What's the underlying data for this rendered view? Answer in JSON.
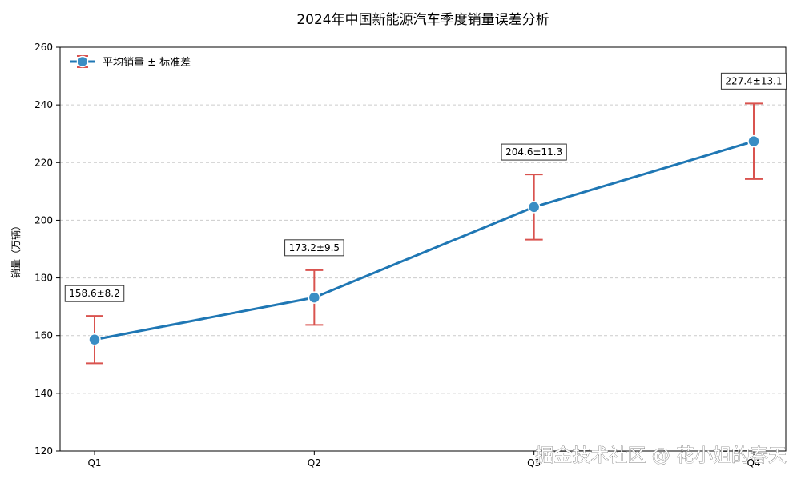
{
  "chart_data": {
    "type": "line",
    "title": "2024年中国新能源汽车季度销量误差分析",
    "xlabel": "",
    "ylabel": "销量（万辆）",
    "categories": [
      "Q1",
      "Q2",
      "Q3",
      "Q4"
    ],
    "series": [
      {
        "name": "平均销量 ± 标准差",
        "values": [
          158.6,
          173.2,
          204.6,
          227.4
        ],
        "errors": [
          8.2,
          9.5,
          11.3,
          13.1
        ]
      }
    ],
    "annotations": [
      "158.6±8.2",
      "173.2±9.5",
      "204.6±11.3",
      "227.4±13.1"
    ],
    "ylim": [
      120,
      260
    ],
    "yticks": [
      120,
      140,
      160,
      180,
      200,
      220,
      240,
      260
    ],
    "grid": "horizontal dashed",
    "legend_position": "top-left",
    "colors": {
      "line": "#1f77b4",
      "marker": "#3a8dc4",
      "errorbar": "#d9534f",
      "grid": "#cccccc"
    }
  },
  "watermark": "掘金技术社区 @ 花小姐的春天"
}
